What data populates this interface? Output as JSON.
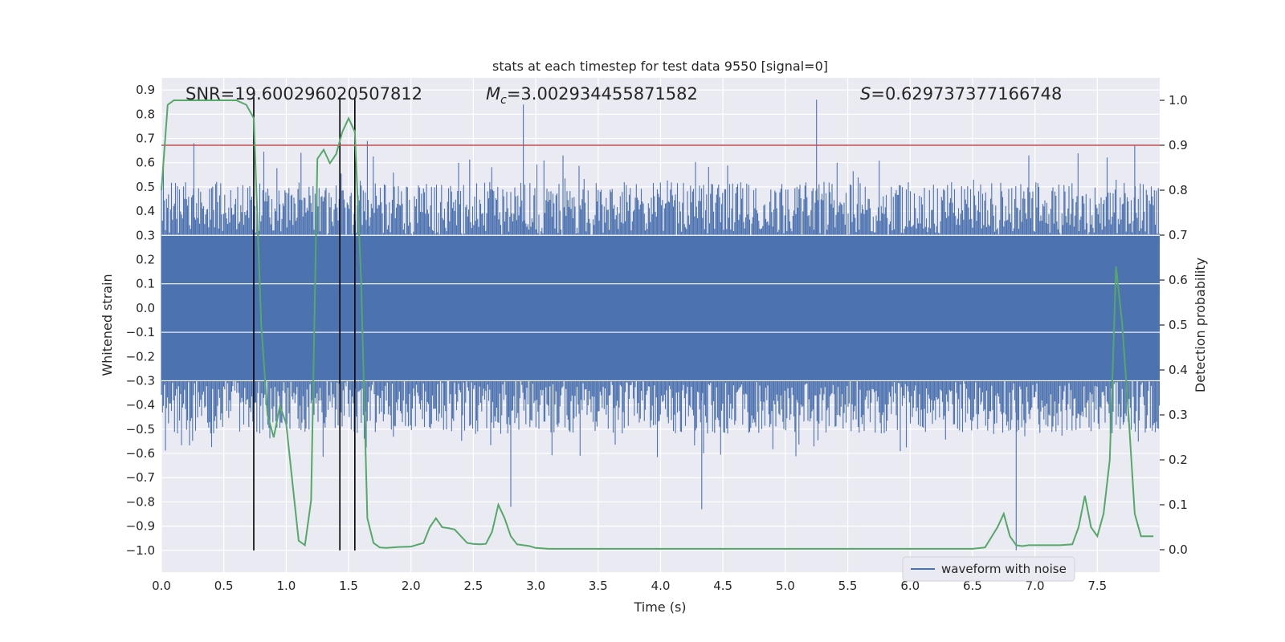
{
  "chart_data": {
    "type": "line",
    "title": "stats at each timestep for test data 9550 [signal=0]",
    "xlabel": "Time (s)",
    "ylabel": "Whitened strain",
    "y2label": "Detection probability",
    "xlim": [
      0.0,
      8.0
    ],
    "ylim": [
      -1.09,
      0.95
    ],
    "y2lim": [
      -0.05,
      1.05
    ],
    "xticks": [
      0.0,
      0.5,
      1.0,
      1.5,
      2.0,
      2.5,
      3.0,
      3.5,
      4.0,
      4.5,
      5.0,
      5.5,
      6.0,
      6.5,
      7.0,
      7.5
    ],
    "xtick_labels": [
      "0.0",
      "0.5",
      "1.0",
      "1.5",
      "2.0",
      "2.5",
      "3.0",
      "3.5",
      "4.0",
      "4.5",
      "5.0",
      "5.5",
      "6.0",
      "6.5",
      "7.0",
      "7.5"
    ],
    "yticks": [
      0.9,
      0.8,
      0.7,
      0.6,
      0.5,
      0.4,
      0.3,
      0.2,
      0.1,
      0.0,
      -0.1,
      -0.2,
      -0.3,
      -0.4,
      -0.5,
      -0.6,
      -0.7,
      -0.8,
      -0.9,
      -1.0
    ],
    "ytick_labels": [
      "0.9",
      "0.8",
      "0.7",
      "0.6",
      "0.5",
      "0.4",
      "0.3",
      "0.2",
      "0.1",
      "0.0",
      "−0.1",
      "−0.2",
      "−0.3",
      "−0.4",
      "−0.5",
      "−0.6",
      "−0.7",
      "−0.8",
      "−0.9",
      "−1.0"
    ],
    "y2ticks": [
      1.0,
      0.9,
      0.8,
      0.7,
      0.6,
      0.5,
      0.4,
      0.3,
      0.2,
      0.1,
      0.0
    ],
    "y2tick_labels": [
      "1.0",
      "0.9",
      "0.8",
      "0.7",
      "0.6",
      "0.5",
      "0.4",
      "0.3",
      "0.2",
      "0.1",
      "0.0"
    ],
    "annotations": {
      "snr": "SNR=19.600296020507812",
      "mc_symbol": "M",
      "mc_sub": "c",
      "mc_value": "=3.002934455871582",
      "s_symbol": "S",
      "s_value": "=0.629737377166748"
    },
    "threshold": {
      "value": 0.9,
      "axis": "y2",
      "color": "#c44e52"
    },
    "vlines": {
      "x": [
        0.74,
        1.43,
        1.55
      ],
      "ymin": -1.0,
      "ymax": 0.87,
      "color": "#000000"
    },
    "series": [
      {
        "name": "waveform with noise",
        "axis": "y",
        "color": "#4c72b0",
        "envelope": {
          "upper": 0.3,
          "lower": -0.3,
          "spike_max": 0.65,
          "spike_min": -0.62
        },
        "notable_peaks": [
          {
            "x": 0.26,
            "y": 0.68
          },
          {
            "x": 1.65,
            "y": 0.69
          },
          {
            "x": 2.9,
            "y": 0.84
          },
          {
            "x": 5.25,
            "y": 0.86
          },
          {
            "x": 7.8,
            "y": 0.67
          }
        ],
        "notable_troughs": [
          {
            "x": 2.8,
            "y": -0.82
          },
          {
            "x": 4.33,
            "y": -0.83
          },
          {
            "x": 6.85,
            "y": -1.0
          }
        ]
      },
      {
        "name": "detection probability",
        "axis": "y2",
        "color": "#55a868",
        "x": [
          0.0,
          0.05,
          0.1,
          0.2,
          0.3,
          0.4,
          0.5,
          0.6,
          0.68,
          0.74,
          0.8,
          0.85,
          0.9,
          0.95,
          1.0,
          1.05,
          1.1,
          1.15,
          1.2,
          1.25,
          1.3,
          1.35,
          1.4,
          1.45,
          1.5,
          1.55,
          1.6,
          1.65,
          1.7,
          1.75,
          1.8,
          1.9,
          2.0,
          2.1,
          2.15,
          2.2,
          2.25,
          2.3,
          2.35,
          2.4,
          2.45,
          2.5,
          2.55,
          2.6,
          2.65,
          2.7,
          2.75,
          2.8,
          2.85,
          2.9,
          2.95,
          3.0,
          3.05,
          3.1,
          3.2,
          3.3,
          3.5,
          4.0,
          4.5,
          5.0,
          5.5,
          6.0,
          6.2,
          6.5,
          6.6,
          6.7,
          6.75,
          6.8,
          6.85,
          6.9,
          6.95,
          7.0,
          7.1,
          7.2,
          7.3,
          7.35,
          7.4,
          7.45,
          7.5,
          7.55,
          7.6,
          7.65,
          7.7,
          7.75,
          7.8,
          7.85,
          7.9,
          7.95
        ],
        "y": [
          0.8,
          0.99,
          1.0,
          1.0,
          1.0,
          1.0,
          1.0,
          1.0,
          0.99,
          0.96,
          0.5,
          0.3,
          0.25,
          0.32,
          0.28,
          0.15,
          0.02,
          0.01,
          0.11,
          0.87,
          0.89,
          0.86,
          0.88,
          0.93,
          0.96,
          0.93,
          0.6,
          0.07,
          0.015,
          0.005,
          0.004,
          0.006,
          0.007,
          0.015,
          0.05,
          0.07,
          0.05,
          0.048,
          0.045,
          0.03,
          0.015,
          0.013,
          0.012,
          0.013,
          0.04,
          0.1,
          0.07,
          0.03,
          0.012,
          0.01,
          0.008,
          0.004,
          0.003,
          0.002,
          0.002,
          0.002,
          0.002,
          0.002,
          0.002,
          0.002,
          0.002,
          0.002,
          0.002,
          0.002,
          0.005,
          0.05,
          0.08,
          0.03,
          0.01,
          0.008,
          0.01,
          0.01,
          0.01,
          0.01,
          0.012,
          0.05,
          0.12,
          0.05,
          0.03,
          0.08,
          0.2,
          0.63,
          0.5,
          0.3,
          0.08,
          0.03,
          0.03,
          0.03
        ]
      }
    ],
    "legend": {
      "label": "waveform with noise",
      "loc": "lower-right"
    }
  }
}
